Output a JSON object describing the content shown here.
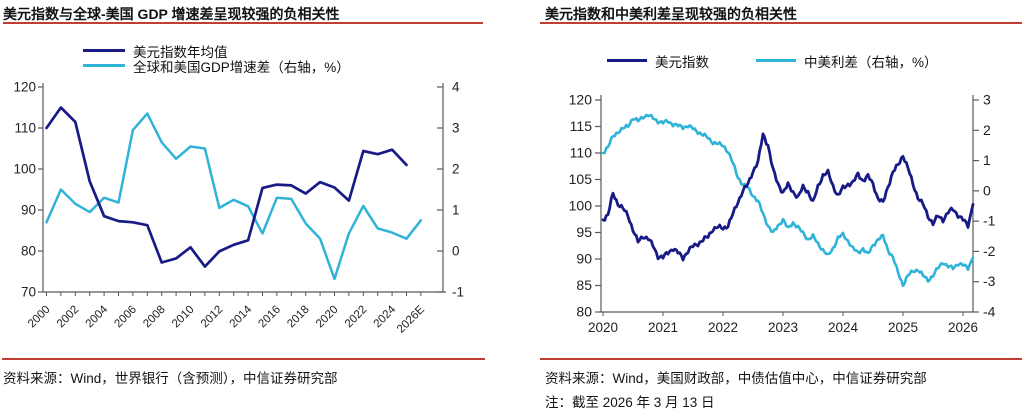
{
  "theme": {
    "accent_red": "#c13c34",
    "navy": "#181a86",
    "cyan": "#2fb3d8",
    "axis_gray": "#595959"
  },
  "chart_data": [
    {
      "type": "line",
      "title": "美元指数与全球-美国 GDP 增速差呈现较强的负相关性",
      "source": "资料来源：Wind，世界银行（含预测），中信证券研究部",
      "legend_position": "top",
      "grid": false,
      "x_tick_labels": [
        "2000",
        "2002",
        "2004",
        "2006",
        "2008",
        "2010",
        "2012",
        "2014",
        "2016",
        "2018",
        "2020",
        "2022",
        "2024",
        "2026E"
      ],
      "left_axis": {
        "ticks": [
          120,
          110,
          100,
          90,
          80,
          70
        ],
        "min": 70,
        "max": 120
      },
      "right_axis": {
        "ticks": [
          4,
          3,
          2,
          1,
          0,
          -1
        ],
        "min": -1,
        "max": 4
      },
      "series": [
        {
          "name": "美元指数年均值",
          "axis": "left",
          "color": "#181a86",
          "x_start": 2000,
          "x_step": 1,
          "values": [
            110,
            115,
            111.5,
            97,
            88.5,
            87.3,
            87,
            86.3,
            77.2,
            78.2,
            80.9,
            76.2,
            79.9,
            81.5,
            82.6,
            95.4,
            96.2,
            96.0,
            94.0,
            96.8,
            95.5,
            92.3,
            104.4,
            103.6,
            104.7,
            101
          ]
        },
        {
          "name": "全球和美国GDP增速差（右轴，%）",
          "axis": "right",
          "color": "#2fb3d8",
          "x_start": 2000,
          "x_step": 1,
          "values": [
            0.7,
            1.5,
            1.15,
            0.95,
            1.3,
            1.18,
            2.95,
            3.35,
            2.65,
            2.25,
            2.55,
            2.5,
            1.05,
            1.25,
            1.09,
            0.43,
            1.3,
            1.27,
            0.67,
            0.3,
            -0.68,
            0.43,
            1.1,
            0.55,
            0.45,
            0.3,
            0.75
          ]
        }
      ]
    },
    {
      "type": "line",
      "title": "美元指数和中美利差呈现较强的负相关性",
      "source": "资料来源：Wind，美国财政部，中债估值中心，中信证券研究部",
      "note": "注：截至 2026 年 3 月 13 日",
      "legend_position": "top",
      "grid": false,
      "x_tick_labels": [
        "2020",
        "2021",
        "2022",
        "2023",
        "2024",
        "2025",
        "2026"
      ],
      "left_axis": {
        "ticks": [
          120,
          115,
          110,
          105,
          100,
          95,
          90,
          85,
          80
        ],
        "min": 80,
        "max": 120
      },
      "right_axis": {
        "ticks": [
          3,
          2,
          1,
          0,
          -1,
          -2,
          -3,
          -4
        ],
        "min": -4,
        "max": 3
      },
      "series": [
        {
          "name": "美元指数",
          "axis": "left",
          "color": "#181a86",
          "x_start": 2020,
          "x_step": 0.0833333,
          "values": [
            97.4,
            98.3,
            102.4,
            100.4,
            99.5,
            98.2,
            95.5,
            93.2,
            94.3,
            93.9,
            92.5,
            90.5,
            90.3,
            91.2,
            92.0,
            91.2,
            90.2,
            91.5,
            92.4,
            92.9,
            93.6,
            94.2,
            95.7,
            96.0,
            95.8,
            96.3,
            98.5,
            100.8,
            102.9,
            104.1,
            106.6,
            108.3,
            113.5,
            111.5,
            106.8,
            104.2,
            102.5,
            104.0,
            102.7,
            101.6,
            103.6,
            102.7,
            100.6,
            103.7,
            105.8,
            106.3,
            103.8,
            101.9,
            103.4,
            104.1,
            104.4,
            106.0,
            104.8,
            105.6,
            104.2,
            101.4,
            100.6,
            103.7,
            106.4,
            107.7,
            109.6,
            107.1,
            104.1,
            101.6,
            100.3,
            98.1,
            96.7,
            98.1,
            97.4,
            98.8,
            99.4,
            98.3,
            97.4,
            96.3,
            100.3
          ]
        },
        {
          "name": "中美利差（右轴，%）",
          "axis": "right",
          "color": "#2fb3d8",
          "x_start": 2020,
          "x_step": 0.0833333,
          "values": [
            1.25,
            1.45,
            1.8,
            1.95,
            2.05,
            2.15,
            2.4,
            2.3,
            2.45,
            2.5,
            2.4,
            2.3,
            2.25,
            2.3,
            2.2,
            2.15,
            2.1,
            2.15,
            2.05,
            1.95,
            1.85,
            1.75,
            1.6,
            1.55,
            1.5,
            1.3,
            0.9,
            0.45,
            0.2,
            0.1,
            -0.15,
            -0.35,
            -0.75,
            -1.15,
            -1.4,
            -1.15,
            -0.95,
            -1.25,
            -1.05,
            -1.2,
            -1.4,
            -1.6,
            -1.5,
            -1.75,
            -1.95,
            -2.15,
            -1.9,
            -1.55,
            -1.45,
            -1.65,
            -1.9,
            -2.05,
            -1.9,
            -2.1,
            -1.8,
            -1.6,
            -1.5,
            -1.95,
            -2.2,
            -2.7,
            -3.1,
            -2.8,
            -2.65,
            -2.6,
            -2.8,
            -2.95,
            -2.8,
            -2.55,
            -2.35,
            -2.5,
            -2.55,
            -2.4,
            -2.45,
            -2.55,
            -2.2
          ]
        }
      ]
    }
  ]
}
